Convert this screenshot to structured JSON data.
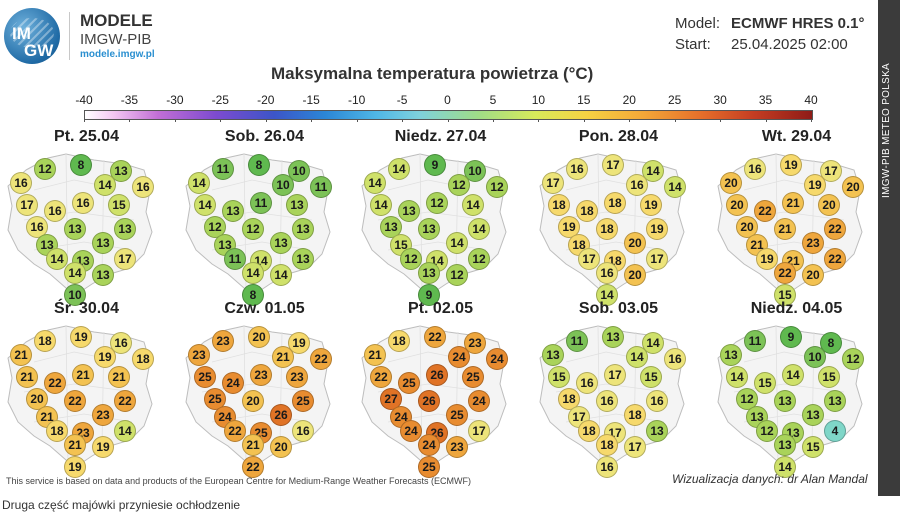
{
  "brand": {
    "logo_text_top": "IM",
    "logo_text_bottom": "GW",
    "title": "MODELE",
    "subtitle": "IMGW-PIB",
    "url": "modele.imgw.pl"
  },
  "side_label": "IMGW-PIB METEO POLSKA",
  "model_info": {
    "model_label": "Model:",
    "model_value": "ECMWF HRES 0.1°",
    "start_label": "Start:",
    "start_value": "25.04.2025 02:00"
  },
  "map_title": "Maksymalna temperatura powietrza (°C)",
  "scale": {
    "ticks": [
      "-40",
      "-35",
      "-30",
      "-25",
      "-20",
      "-15",
      "-10",
      "-5",
      "0",
      "5",
      "10",
      "15",
      "20",
      "25",
      "30",
      "35",
      "40"
    ]
  },
  "days": [
    {
      "label": "Pt. 25.04",
      "values": [
        12,
        8,
        13,
        16,
        14,
        16,
        17,
        16,
        16,
        15,
        16,
        13,
        13,
        13,
        14,
        13,
        13,
        14,
        13,
        17,
        10
      ]
    },
    {
      "label": "Sob. 26.04",
      "values": [
        11,
        8,
        10,
        14,
        10,
        11,
        14,
        13,
        11,
        13,
        12,
        12,
        13,
        13,
        11,
        14,
        13,
        14,
        14,
        13,
        8
      ]
    },
    {
      "label": "Niedz. 27.04",
      "values": [
        14,
        9,
        10,
        14,
        12,
        12,
        14,
        13,
        12,
        14,
        13,
        13,
        14,
        15,
        12,
        14,
        14,
        13,
        12,
        12,
        9
      ]
    },
    {
      "label": "Pon. 28.04",
      "values": [
        16,
        17,
        14,
        17,
        16,
        14,
        18,
        18,
        18,
        19,
        19,
        18,
        19,
        18,
        17,
        18,
        20,
        16,
        20,
        17,
        14
      ]
    },
    {
      "label": "Wt. 29.04",
      "values": [
        16,
        19,
        17,
        20,
        19,
        20,
        20,
        22,
        21,
        20,
        20,
        21,
        22,
        21,
        19,
        21,
        23,
        22,
        20,
        22,
        15
      ]
    },
    {
      "label": "Śr. 30.04",
      "values": [
        18,
        19,
        16,
        21,
        19,
        18,
        21,
        22,
        21,
        21,
        20,
        22,
        22,
        21,
        18,
        23,
        23,
        21,
        19,
        14,
        19
      ]
    },
    {
      "label": "Czw. 01.05",
      "values": [
        23,
        20,
        19,
        23,
        21,
        22,
        25,
        24,
        23,
        23,
        25,
        20,
        25,
        24,
        22,
        25,
        26,
        21,
        20,
        16,
        22
      ]
    },
    {
      "label": "Pt. 02.05",
      "values": [
        18,
        22,
        23,
        21,
        24,
        24,
        22,
        25,
        26,
        25,
        27,
        26,
        24,
        24,
        24,
        26,
        25,
        24,
        23,
        17,
        25
      ]
    },
    {
      "label": "Sob. 03.05",
      "values": [
        11,
        13,
        14,
        13,
        14,
        16,
        15,
        16,
        17,
        15,
        18,
        16,
        16,
        17,
        18,
        17,
        18,
        18,
        17,
        13,
        16
      ]
    },
    {
      "label": "Niedz. 04.05",
      "values": [
        11,
        9,
        8,
        13,
        10,
        12,
        14,
        15,
        14,
        15,
        12,
        13,
        13,
        13,
        12,
        13,
        13,
        13,
        15,
        4,
        14
      ]
    }
  ],
  "footer_left": "This service is based on data and products of the European Centre for Medium-Range Weather Forecasts (ECMWF)",
  "footer_right": "Wizualizacja danych: dr Alan Mandal",
  "caption": "Druga część majówki przyniesie ochłodzenie"
}
